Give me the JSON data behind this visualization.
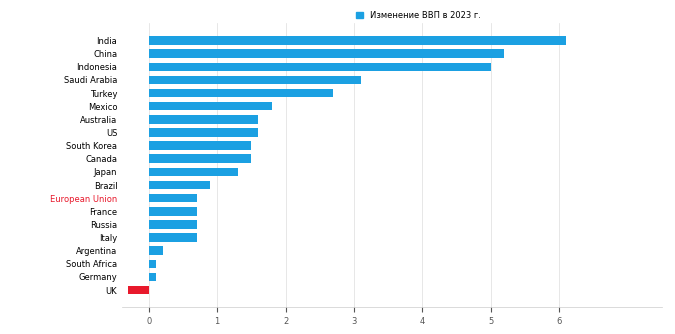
{
  "title": "Изменение ВВП в 2023 г.",
  "categories": [
    "India",
    "China",
    "Indonesia",
    "Saudi Arabia",
    "Turkey",
    "Mexico",
    "Australia",
    "US",
    "South Korea",
    "Canada",
    "Japan",
    "Brazil",
    "European Union",
    "France",
    "Russia",
    "Italy",
    "Argentina",
    "South Africa",
    "Germany",
    "UK"
  ],
  "values": [
    6.1,
    5.2,
    5.0,
    3.1,
    2.7,
    1.8,
    1.6,
    1.6,
    1.5,
    1.5,
    1.3,
    0.9,
    0.7,
    0.7,
    0.7,
    0.7,
    0.2,
    0.1,
    0.1,
    -0.3
  ],
  "bar_colors": [
    "#1ba0e2",
    "#1ba0e2",
    "#1ba0e2",
    "#1ba0e2",
    "#1ba0e2",
    "#1ba0e2",
    "#1ba0e2",
    "#1ba0e2",
    "#1ba0e2",
    "#1ba0e2",
    "#1ba0e2",
    "#1ba0e2",
    "#1ba0e2",
    "#1ba0e2",
    "#1ba0e2",
    "#1ba0e2",
    "#1ba0e2",
    "#1ba0e2",
    "#1ba0e2",
    "#e8192c"
  ],
  "legend_label": "Изменение ВВП в 2023 г.",
  "legend_color": "#1ba0e2",
  "xlim": [
    -0.4,
    7.5
  ],
  "background_color": "#ffffff",
  "eu_label_color": "#e8192c",
  "bar_height": 0.65,
  "label_fontsize": 6.0,
  "tick_fontsize": 6.0
}
